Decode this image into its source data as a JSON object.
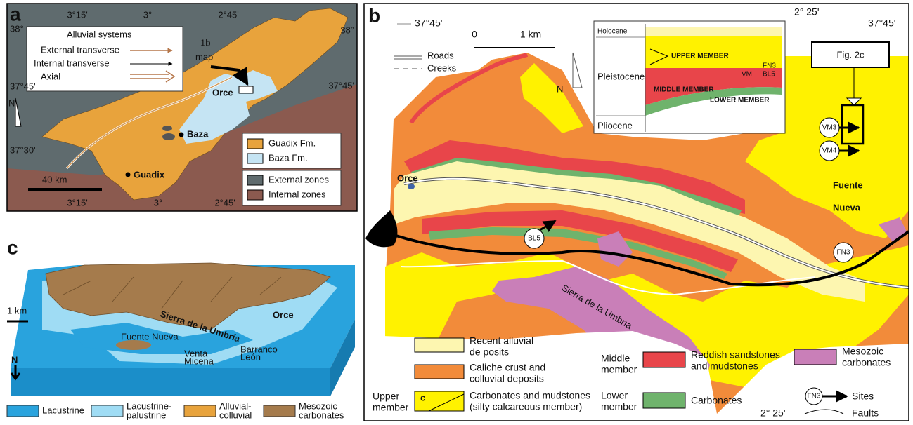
{
  "panel_a": {
    "label": "a",
    "lon_top": [
      "3°15'",
      "3°",
      "2°45'"
    ],
    "lon_bottom": [
      "3°15'",
      "3°",
      "2°45'"
    ],
    "lat_left": [
      "38°",
      "37°45'",
      "37°30'"
    ],
    "lat_right": [
      "38°",
      "37°45'"
    ],
    "legend_title": "Alluvial systems",
    "legend": [
      "External transverse",
      "Internal transverse",
      "Axial"
    ],
    "callout": [
      "1b",
      "map"
    ],
    "places": [
      "Orce",
      "Baza",
      "Guadix"
    ],
    "north": "N",
    "scale": "40 km",
    "units": [
      "Guadix Fm.",
      "Baza Fm.",
      "External zones",
      "Internal zones"
    ]
  },
  "panel_b": {
    "label": "b",
    "coords": [
      "37°45'",
      "2° 25'",
      "37°45'",
      "2° 25'"
    ],
    "scale": [
      "0",
      "1 km"
    ],
    "north": "N",
    "lines": [
      "Roads",
      "Creeks"
    ],
    "inset": {
      "epochs": [
        "Holocene",
        "Pleistocene",
        "Pliocene"
      ],
      "members": [
        "UPPER MEMBER",
        "MIDDLE MEMBER",
        "LOWER MEMBER"
      ],
      "sites": [
        "VM",
        "FN3",
        "BL5"
      ]
    },
    "callout": "Fig. 2c",
    "sites": [
      "VM3",
      "VM4",
      "BL5",
      "FN3"
    ],
    "places": [
      "Orce",
      "Fuente",
      "Nueva",
      "Sierra de la Umbría"
    ],
    "legend": {
      "recent": [
        "Recent alluvial",
        "de posits"
      ],
      "caliche": [
        "Caliche crust and",
        "colluvial deposits"
      ],
      "middle_group": [
        "Middle",
        "member"
      ],
      "reddish": [
        "Reddish sandstones",
        "and mudstones"
      ],
      "mesozoic": [
        "Mesozoic",
        "carbonates"
      ],
      "upper_group": [
        "Upper",
        "member"
      ],
      "upper_symbol": "c",
      "upper": [
        "Carbonates and mudstones",
        "(silty calcareous member)"
      ],
      "lower_group": [
        "Lower",
        "member"
      ],
      "carbonates": "Carbonates",
      "site_symbol": "FN3",
      "sites": "Sites",
      "faults": "Faults"
    }
  },
  "panel_c": {
    "label": "c",
    "scale": "1 km",
    "north": "N",
    "places": [
      "Sierra de la Umbría",
      "Orce",
      "Fuente Nueva",
      "Venta",
      "Micena",
      "Barranco",
      "León"
    ],
    "legend": [
      [
        "Lacustrine"
      ],
      [
        "Lacustrine-",
        "palustrine"
      ],
      [
        "Alluvial-",
        "colluvial"
      ],
      [
        "Mesozoic",
        "carbonates"
      ]
    ]
  }
}
